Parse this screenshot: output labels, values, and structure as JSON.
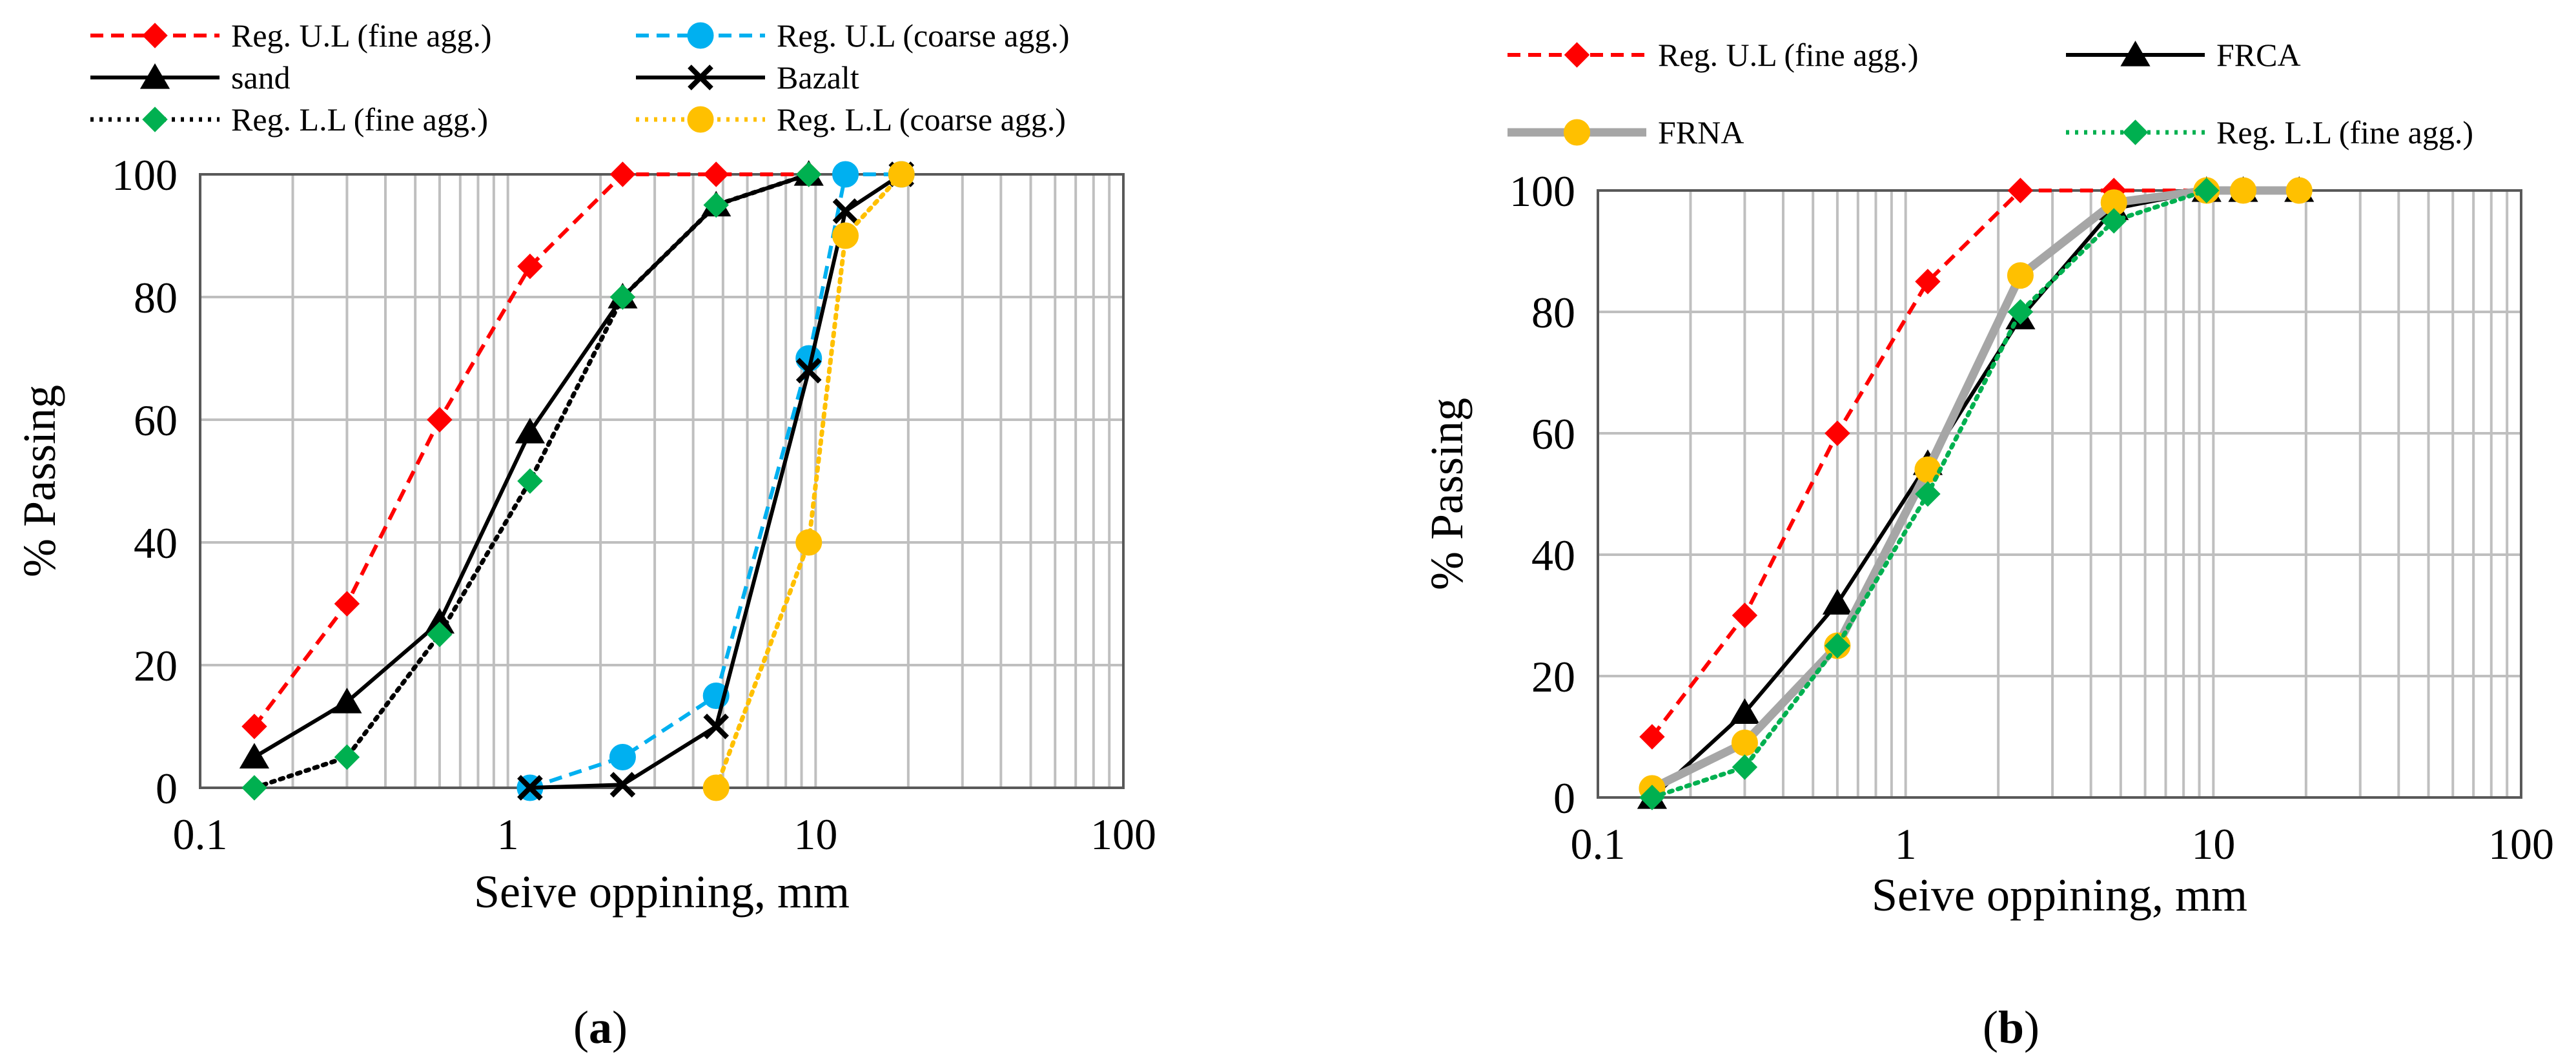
{
  "chart_data": [
    {
      "type": "line",
      "panel_label": "a",
      "xscale": "log",
      "xlim": [
        0.1,
        100
      ],
      "ylim": [
        0,
        100
      ],
      "ytick_step": 20,
      "xtick_labels": [
        "0.1",
        "1",
        "10",
        "100"
      ],
      "ytick_labels": [
        "0",
        "20",
        "40",
        "60",
        "80",
        "100"
      ],
      "xlabel": "Seive oppining, mm",
      "ylabel": "% Passing",
      "series": [
        {
          "name": "Reg. U.L (fine agg.)",
          "color": "#FF0000",
          "line": "dashed",
          "marker": "diamond",
          "marker_color": "#FF0000",
          "x": [
            0.15,
            0.3,
            0.6,
            1.18,
            2.36,
            4.75,
            9.5
          ],
          "y": [
            10,
            30,
            60,
            85,
            100,
            100,
            100
          ]
        },
        {
          "name": "Reg. U.L (coarse agg.)",
          "color": "#00B0F0",
          "line": "dashed",
          "marker": "circle",
          "marker_color": "#00B0F0",
          "x": [
            1.18,
            2.36,
            4.75,
            9.5,
            12.5,
            19
          ],
          "y": [
            0,
            5,
            15,
            70,
            100,
            100
          ]
        },
        {
          "name": "sand",
          "color": "#000000",
          "line": "solid",
          "marker": "triangle",
          "marker_color": "#000000",
          "x": [
            0.15,
            0.3,
            0.6,
            1.18,
            2.36,
            4.75,
            9.5
          ],
          "y": [
            5,
            14,
            27,
            58,
            80,
            95,
            100
          ]
        },
        {
          "name": "Bazalt",
          "color": "#000000",
          "line": "solid",
          "marker": "x",
          "marker_color": "#000000",
          "x": [
            1.18,
            2.36,
            4.75,
            9.5,
            12.5,
            19
          ],
          "y": [
            0,
            0.5,
            10,
            68,
            94,
            100
          ]
        },
        {
          "name": "Reg. L.L (fine agg.)",
          "color": "#000000",
          "line": "dotted",
          "marker": "diamond",
          "marker_color": "#00B050",
          "x": [
            0.15,
            0.3,
            0.6,
            1.18,
            2.36,
            4.75,
            9.5
          ],
          "y": [
            0,
            5,
            25,
            50,
            80,
            95,
            100
          ]
        },
        {
          "name": "Reg. L.L (coarse agg.)",
          "color": "#FFC000",
          "line": "dotted",
          "marker": "circle",
          "marker_color": "#FFC000",
          "x": [
            4.75,
            9.5,
            12.5,
            19
          ],
          "y": [
            0,
            40,
            90,
            100
          ]
        }
      ]
    },
    {
      "type": "line",
      "panel_label": "b",
      "xscale": "log",
      "xlim": [
        0.1,
        100
      ],
      "ylim": [
        0,
        100
      ],
      "ytick_step": 20,
      "xtick_labels": [
        "0.1",
        "1",
        "10",
        "100"
      ],
      "ytick_labels": [
        "0",
        "20",
        "40",
        "60",
        "80",
        "100"
      ],
      "xlabel": "Seive oppining, mm",
      "ylabel": "% Passing",
      "series": [
        {
          "name": "Reg. U.L (fine agg.)",
          "color": "#FF0000",
          "line": "dashed",
          "marker": "diamond",
          "marker_color": "#FF0000",
          "x": [
            0.15,
            0.3,
            0.6,
            1.18,
            2.36,
            4.75,
            9.5
          ],
          "y": [
            10,
            30,
            60,
            85,
            100,
            100,
            100
          ]
        },
        {
          "name": "FRCA",
          "color": "#000000",
          "line": "solid",
          "marker": "triangle",
          "marker_color": "#000000",
          "x": [
            0.15,
            0.3,
            0.6,
            1.18,
            2.36,
            4.75,
            9.5,
            12.5,
            19
          ],
          "y": [
            0,
            14,
            32,
            55,
            79,
            97,
            100,
            100,
            100
          ]
        },
        {
          "name": "FRNA",
          "color": "#A6A6A6",
          "line": "solid-thick",
          "marker": "circle",
          "marker_color": "#FFC000",
          "x": [
            0.15,
            0.3,
            0.6,
            1.18,
            2.36,
            4.75,
            9.5,
            12.5,
            19
          ],
          "y": [
            1.5,
            9,
            25,
            54,
            86,
            98,
            100,
            100,
            100
          ]
        },
        {
          "name": "Reg. L.L (fine agg.)",
          "color": "#00B050",
          "line": "dotted",
          "marker": "diamond",
          "marker_color": "#00B050",
          "x": [
            0.15,
            0.3,
            0.6,
            1.18,
            2.36,
            4.75,
            9.5
          ],
          "y": [
            0,
            5,
            25,
            50,
            80,
            95,
            100
          ]
        }
      ]
    }
  ],
  "captions": {
    "a": "a",
    "b": "b"
  }
}
